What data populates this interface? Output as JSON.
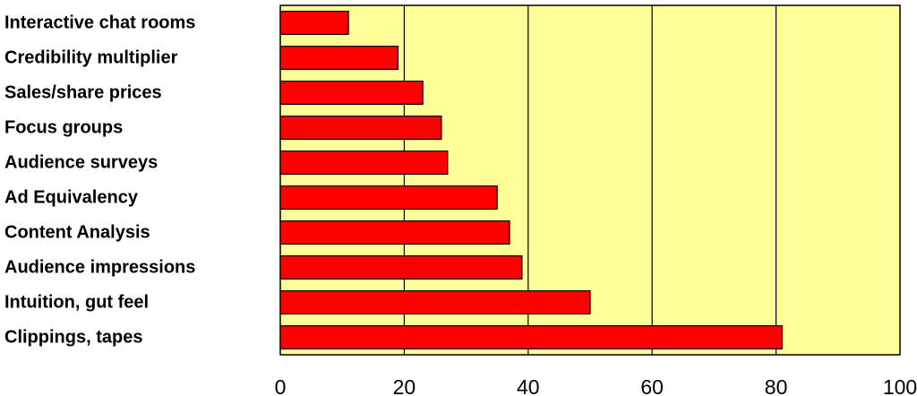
{
  "chart_data": {
    "type": "bar",
    "orientation": "horizontal",
    "categories": [
      "Interactive chat rooms",
      "Credibility multiplier",
      "Sales/share prices",
      "Focus groups",
      "Audience surveys",
      "Ad Equivalency",
      "Content Analysis",
      "Audience impressions",
      "Intuition, gut feel",
      "Clippings, tapes"
    ],
    "values": [
      11,
      19,
      23,
      26,
      27,
      35,
      37,
      39,
      50,
      81
    ],
    "x_ticks": [
      "0",
      "20",
      "40",
      "60",
      "80",
      "100"
    ],
    "xlim": [
      0,
      100
    ],
    "title": "",
    "xlabel": "",
    "ylabel": "",
    "grid": "vertical",
    "legend": "none",
    "colors": {
      "bar_fill": "#ff0000",
      "bar_stroke": "#000000",
      "plot_background": "#ffff99",
      "gridline": "#000000"
    }
  }
}
